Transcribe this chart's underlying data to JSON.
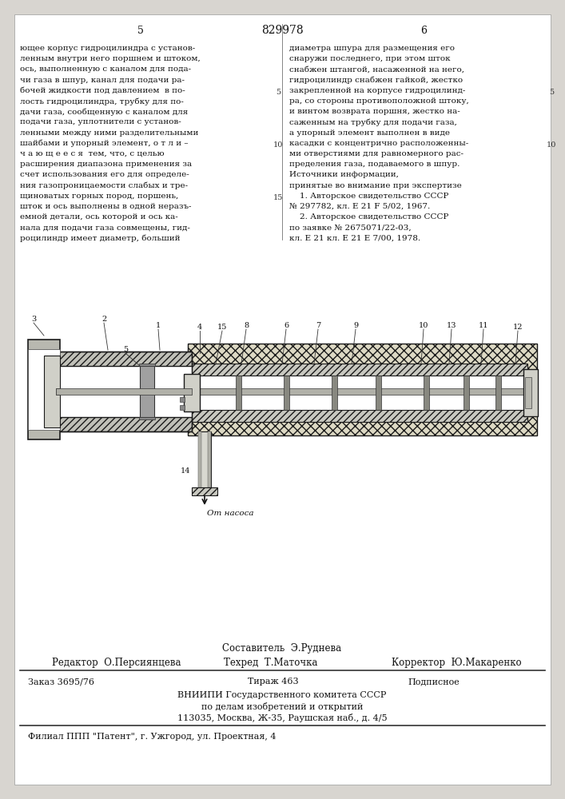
{
  "page_number_left": "5",
  "page_number_center": "829978",
  "page_number_right": "6",
  "col_left_lines": [
    "ющее корпус гидроцилиндра с установ-",
    "ленным внутри него поршнем и штоком,",
    "ось, выполненную с каналом для пода-",
    "чи газа в шпур, канал для подачи ра-",
    "бочей жидкости под давлением  в по-",
    "лость гидроцилиндра, трубку для по-",
    "дачи газа, сообщенную с каналом для",
    "подачи газа, уплотнители с установ-",
    "ленными между ними разделительными",
    "шайбами и упорный элемент, о т л и –",
    "ч а ю щ е е с я  тем, что, с целью",
    "расширения диапазона применения за",
    "счет использования его для определе-",
    "ния газопроницаемости слабых и тре-",
    "щиноватых горных пород, поршень,",
    "шток и ось выполнены в одной неразъ-",
    "емной детали, ось которой и ось ка-",
    "нала для подачи газа совмещены, гид-",
    "роцилиндр имеет диаметр, больший"
  ],
  "col_right_lines": [
    "диаметра шпура для размещения его",
    "снаружи последнего, при этом шток",
    "снабжен штангой, насаженной на него,",
    "гидроцилиндр снабжен гайкой, жестко",
    "закрепленной на корпусе гидроцилинд-",
    "ра, со стороны противоположной штоку,",
    "и винтом возврата поршня, жестко на-",
    "саженным на трубку для подачи газа,",
    "а упорный элемент выполнен в виде",
    "касадки с концентрично расположенны-",
    "ми отверстиями для равномерного рас-",
    "пределения газа, подаваемого в шпур.",
    "Источники информации,",
    "принятые во внимание при экспертизе",
    "    1. Авторское свидетельство СССР",
    "№ 297782, кл. E 21 F 5/02, 1967.",
    "    2. Авторское свидетельство СССР",
    "по заявке № 2675071/22-03,",
    "кл. E 21 кл. E 21 E 7/00, 1978."
  ],
  "footer_sestavitel": "Составитель  Э.Руднева",
  "footer_redaktor": "Редактор  О.Персиянцева",
  "footer_tehred": "Техред  Т.Маточка",
  "footer_korrektor": "Корректор  Ю.Макаренко",
  "order_left": "Заказ 3695/76",
  "order_center": "Тираж 463",
  "order_right": "Подписное",
  "institute_line1": "ВНИИПИ Государственного комитета СССР",
  "institute_line2": "по делам изобретений и открытий",
  "institute_line3": "113035, Москва, Ж-35, Раушская наб., д. 4/5",
  "filial_line": "Филиал ППП \"Патент\", г. Ужгород, ул. Проектная, 4",
  "diagram_label": "От насоса"
}
